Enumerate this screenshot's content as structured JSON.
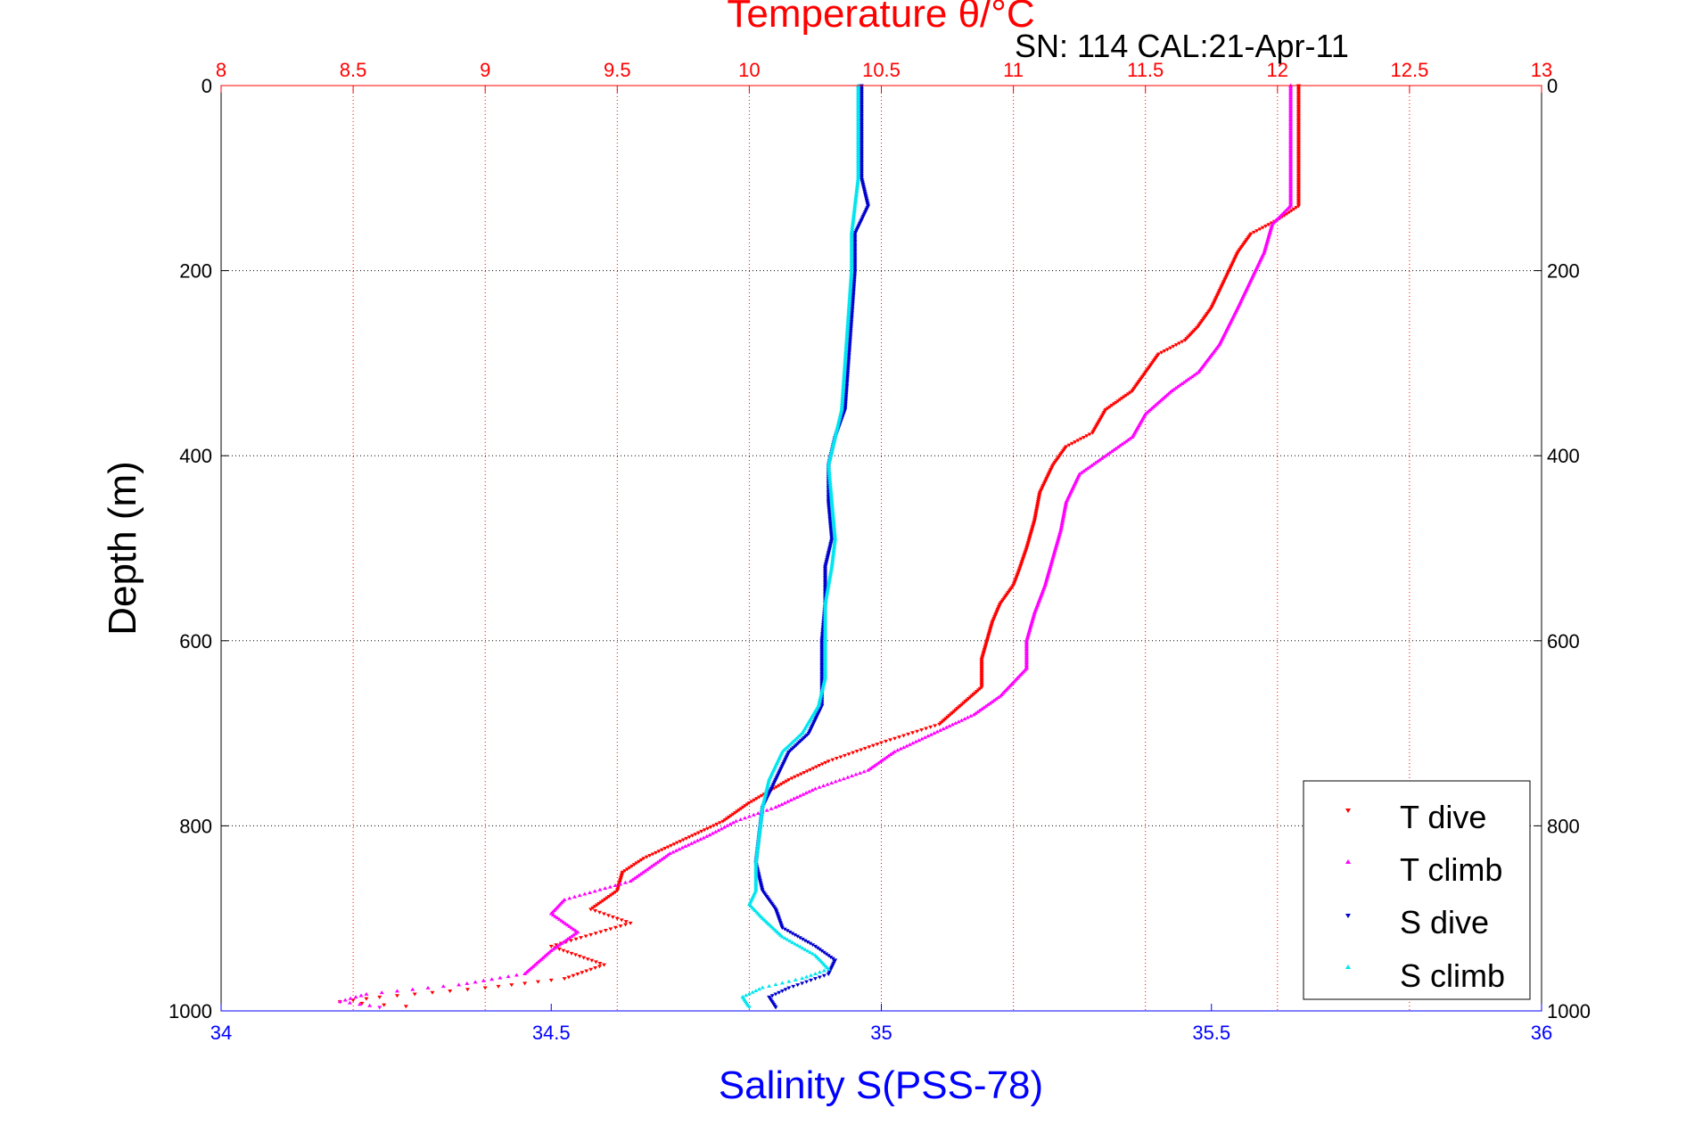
{
  "colors": {
    "temperature_axis": "#ff0000",
    "salinity_axis": "#0000ff",
    "depth_axis": "#000000",
    "t_dive": "#ff0000",
    "t_climb": "#ff00ff",
    "s_dive": "#0000cc",
    "s_climb": "#00e5ee"
  },
  "chart_data": {
    "type": "scatter",
    "title": "Temperature θ/°C",
    "subtitle": "SN: 114  CAL:21-Apr-11",
    "xlabel_top": "Temperature θ/°C",
    "xlabel_bottom": "Salinity S(PSS-78)",
    "ylabel": "Depth (m)",
    "temperature_lim": [
      8,
      13
    ],
    "salinity_lim": [
      34,
      36
    ],
    "depth_lim": [
      0,
      1000
    ],
    "y_reversed": true,
    "grid": true,
    "legend_position": "bottom-right",
    "temperature_ticks": [
      "8",
      "8.5",
      "9",
      "9.5",
      "10",
      "10.5",
      "11",
      "11.5",
      "12",
      "12.5",
      "13"
    ],
    "salinity_ticks": [
      "34",
      "34.5",
      "35",
      "35.5",
      "36"
    ],
    "depth_ticks": [
      "0",
      "200",
      "400",
      "600",
      "800",
      "1000"
    ],
    "series": [
      {
        "name": "T dive",
        "axis": "temperature",
        "marker": "triangle-down",
        "points": [
          [
            12.08,
            0
          ],
          [
            12.08,
            50
          ],
          [
            12.08,
            100
          ],
          [
            12.08,
            130
          ],
          [
            12.0,
            145
          ],
          [
            11.9,
            160
          ],
          [
            11.85,
            180
          ],
          [
            11.8,
            210
          ],
          [
            11.75,
            240
          ],
          [
            11.7,
            260
          ],
          [
            11.65,
            275
          ],
          [
            11.55,
            290
          ],
          [
            11.5,
            310
          ],
          [
            11.45,
            330
          ],
          [
            11.35,
            350
          ],
          [
            11.3,
            375
          ],
          [
            11.2,
            390
          ],
          [
            11.15,
            410
          ],
          [
            11.1,
            440
          ],
          [
            11.08,
            470
          ],
          [
            11.05,
            500
          ],
          [
            11.02,
            525
          ],
          [
            11.0,
            540
          ],
          [
            10.95,
            560
          ],
          [
            10.92,
            580
          ],
          [
            10.9,
            600
          ],
          [
            10.88,
            620
          ],
          [
            10.88,
            650
          ],
          [
            10.8,
            670
          ],
          [
            10.72,
            690
          ],
          [
            10.5,
            710
          ],
          [
            10.3,
            730
          ],
          [
            10.15,
            750
          ],
          [
            10.0,
            775
          ],
          [
            9.9,
            795
          ],
          [
            9.75,
            815
          ],
          [
            9.6,
            835
          ],
          [
            9.52,
            850
          ],
          [
            9.5,
            870
          ],
          [
            9.4,
            890
          ],
          [
            9.55,
            905
          ],
          [
            9.25,
            930
          ],
          [
            9.45,
            950
          ],
          [
            9.3,
            965
          ],
          [
            9.0,
            975
          ],
          [
            8.6,
            985
          ],
          [
            8.45,
            990
          ],
          [
            8.7,
            995
          ]
        ]
      },
      {
        "name": "T climb",
        "axis": "temperature",
        "marker": "triangle-up",
        "points": [
          [
            12.05,
            0
          ],
          [
            12.05,
            50
          ],
          [
            12.05,
            100
          ],
          [
            12.05,
            130
          ],
          [
            11.98,
            150
          ],
          [
            11.95,
            180
          ],
          [
            11.9,
            210
          ],
          [
            11.85,
            240
          ],
          [
            11.78,
            280
          ],
          [
            11.7,
            310
          ],
          [
            11.6,
            330
          ],
          [
            11.5,
            355
          ],
          [
            11.45,
            380
          ],
          [
            11.35,
            400
          ],
          [
            11.25,
            420
          ],
          [
            11.2,
            450
          ],
          [
            11.18,
            480
          ],
          [
            11.15,
            510
          ],
          [
            11.12,
            540
          ],
          [
            11.08,
            570
          ],
          [
            11.05,
            600
          ],
          [
            11.05,
            630
          ],
          [
            10.95,
            660
          ],
          [
            10.85,
            680
          ],
          [
            10.7,
            700
          ],
          [
            10.55,
            720
          ],
          [
            10.45,
            740
          ],
          [
            10.25,
            760
          ],
          [
            10.1,
            780
          ],
          [
            9.95,
            795
          ],
          [
            9.85,
            810
          ],
          [
            9.7,
            830
          ],
          [
            9.55,
            860
          ],
          [
            9.3,
            880
          ],
          [
            9.25,
            895
          ],
          [
            9.35,
            915
          ],
          [
            9.25,
            935
          ],
          [
            9.15,
            960
          ],
          [
            8.9,
            972
          ],
          [
            8.55,
            982
          ],
          [
            8.45,
            990
          ],
          [
            8.6,
            996
          ]
        ]
      },
      {
        "name": "S dive",
        "axis": "salinity",
        "marker": "triangle-down",
        "points": [
          [
            34.97,
            0
          ],
          [
            34.97,
            50
          ],
          [
            34.97,
            100
          ],
          [
            34.98,
            130
          ],
          [
            34.96,
            160
          ],
          [
            34.96,
            200
          ],
          [
            34.955,
            250
          ],
          [
            34.95,
            300
          ],
          [
            34.945,
            350
          ],
          [
            34.93,
            380
          ],
          [
            34.92,
            410
          ],
          [
            34.92,
            450
          ],
          [
            34.925,
            490
          ],
          [
            34.915,
            520
          ],
          [
            34.915,
            560
          ],
          [
            34.91,
            600
          ],
          [
            34.91,
            640
          ],
          [
            34.91,
            670
          ],
          [
            34.89,
            700
          ],
          [
            34.86,
            720
          ],
          [
            34.84,
            750
          ],
          [
            34.82,
            780
          ],
          [
            34.815,
            810
          ],
          [
            34.81,
            840
          ],
          [
            34.82,
            870
          ],
          [
            34.84,
            890
          ],
          [
            34.85,
            910
          ],
          [
            34.9,
            930
          ],
          [
            34.93,
            945
          ],
          [
            34.92,
            960
          ],
          [
            34.86,
            975
          ],
          [
            34.83,
            985
          ],
          [
            34.84,
            996
          ]
        ]
      },
      {
        "name": "S climb",
        "axis": "salinity",
        "marker": "triangle-up",
        "points": [
          [
            34.965,
            0
          ],
          [
            34.965,
            50
          ],
          [
            34.965,
            100
          ],
          [
            34.96,
            130
          ],
          [
            34.955,
            160
          ],
          [
            34.955,
            200
          ],
          [
            34.95,
            250
          ],
          [
            34.945,
            300
          ],
          [
            34.94,
            350
          ],
          [
            34.93,
            380
          ],
          [
            34.92,
            410
          ],
          [
            34.925,
            450
          ],
          [
            34.93,
            490
          ],
          [
            34.925,
            520
          ],
          [
            34.915,
            560
          ],
          [
            34.915,
            600
          ],
          [
            34.915,
            640
          ],
          [
            34.905,
            670
          ],
          [
            34.88,
            700
          ],
          [
            34.85,
            720
          ],
          [
            34.83,
            750
          ],
          [
            34.82,
            780
          ],
          [
            34.815,
            810
          ],
          [
            34.81,
            840
          ],
          [
            34.81,
            870
          ],
          [
            34.8,
            885
          ],
          [
            34.82,
            900
          ],
          [
            34.85,
            920
          ],
          [
            34.9,
            940
          ],
          [
            34.92,
            955
          ],
          [
            34.88,
            965
          ],
          [
            34.82,
            975
          ],
          [
            34.79,
            985
          ],
          [
            34.8,
            996
          ]
        ]
      }
    ]
  }
}
